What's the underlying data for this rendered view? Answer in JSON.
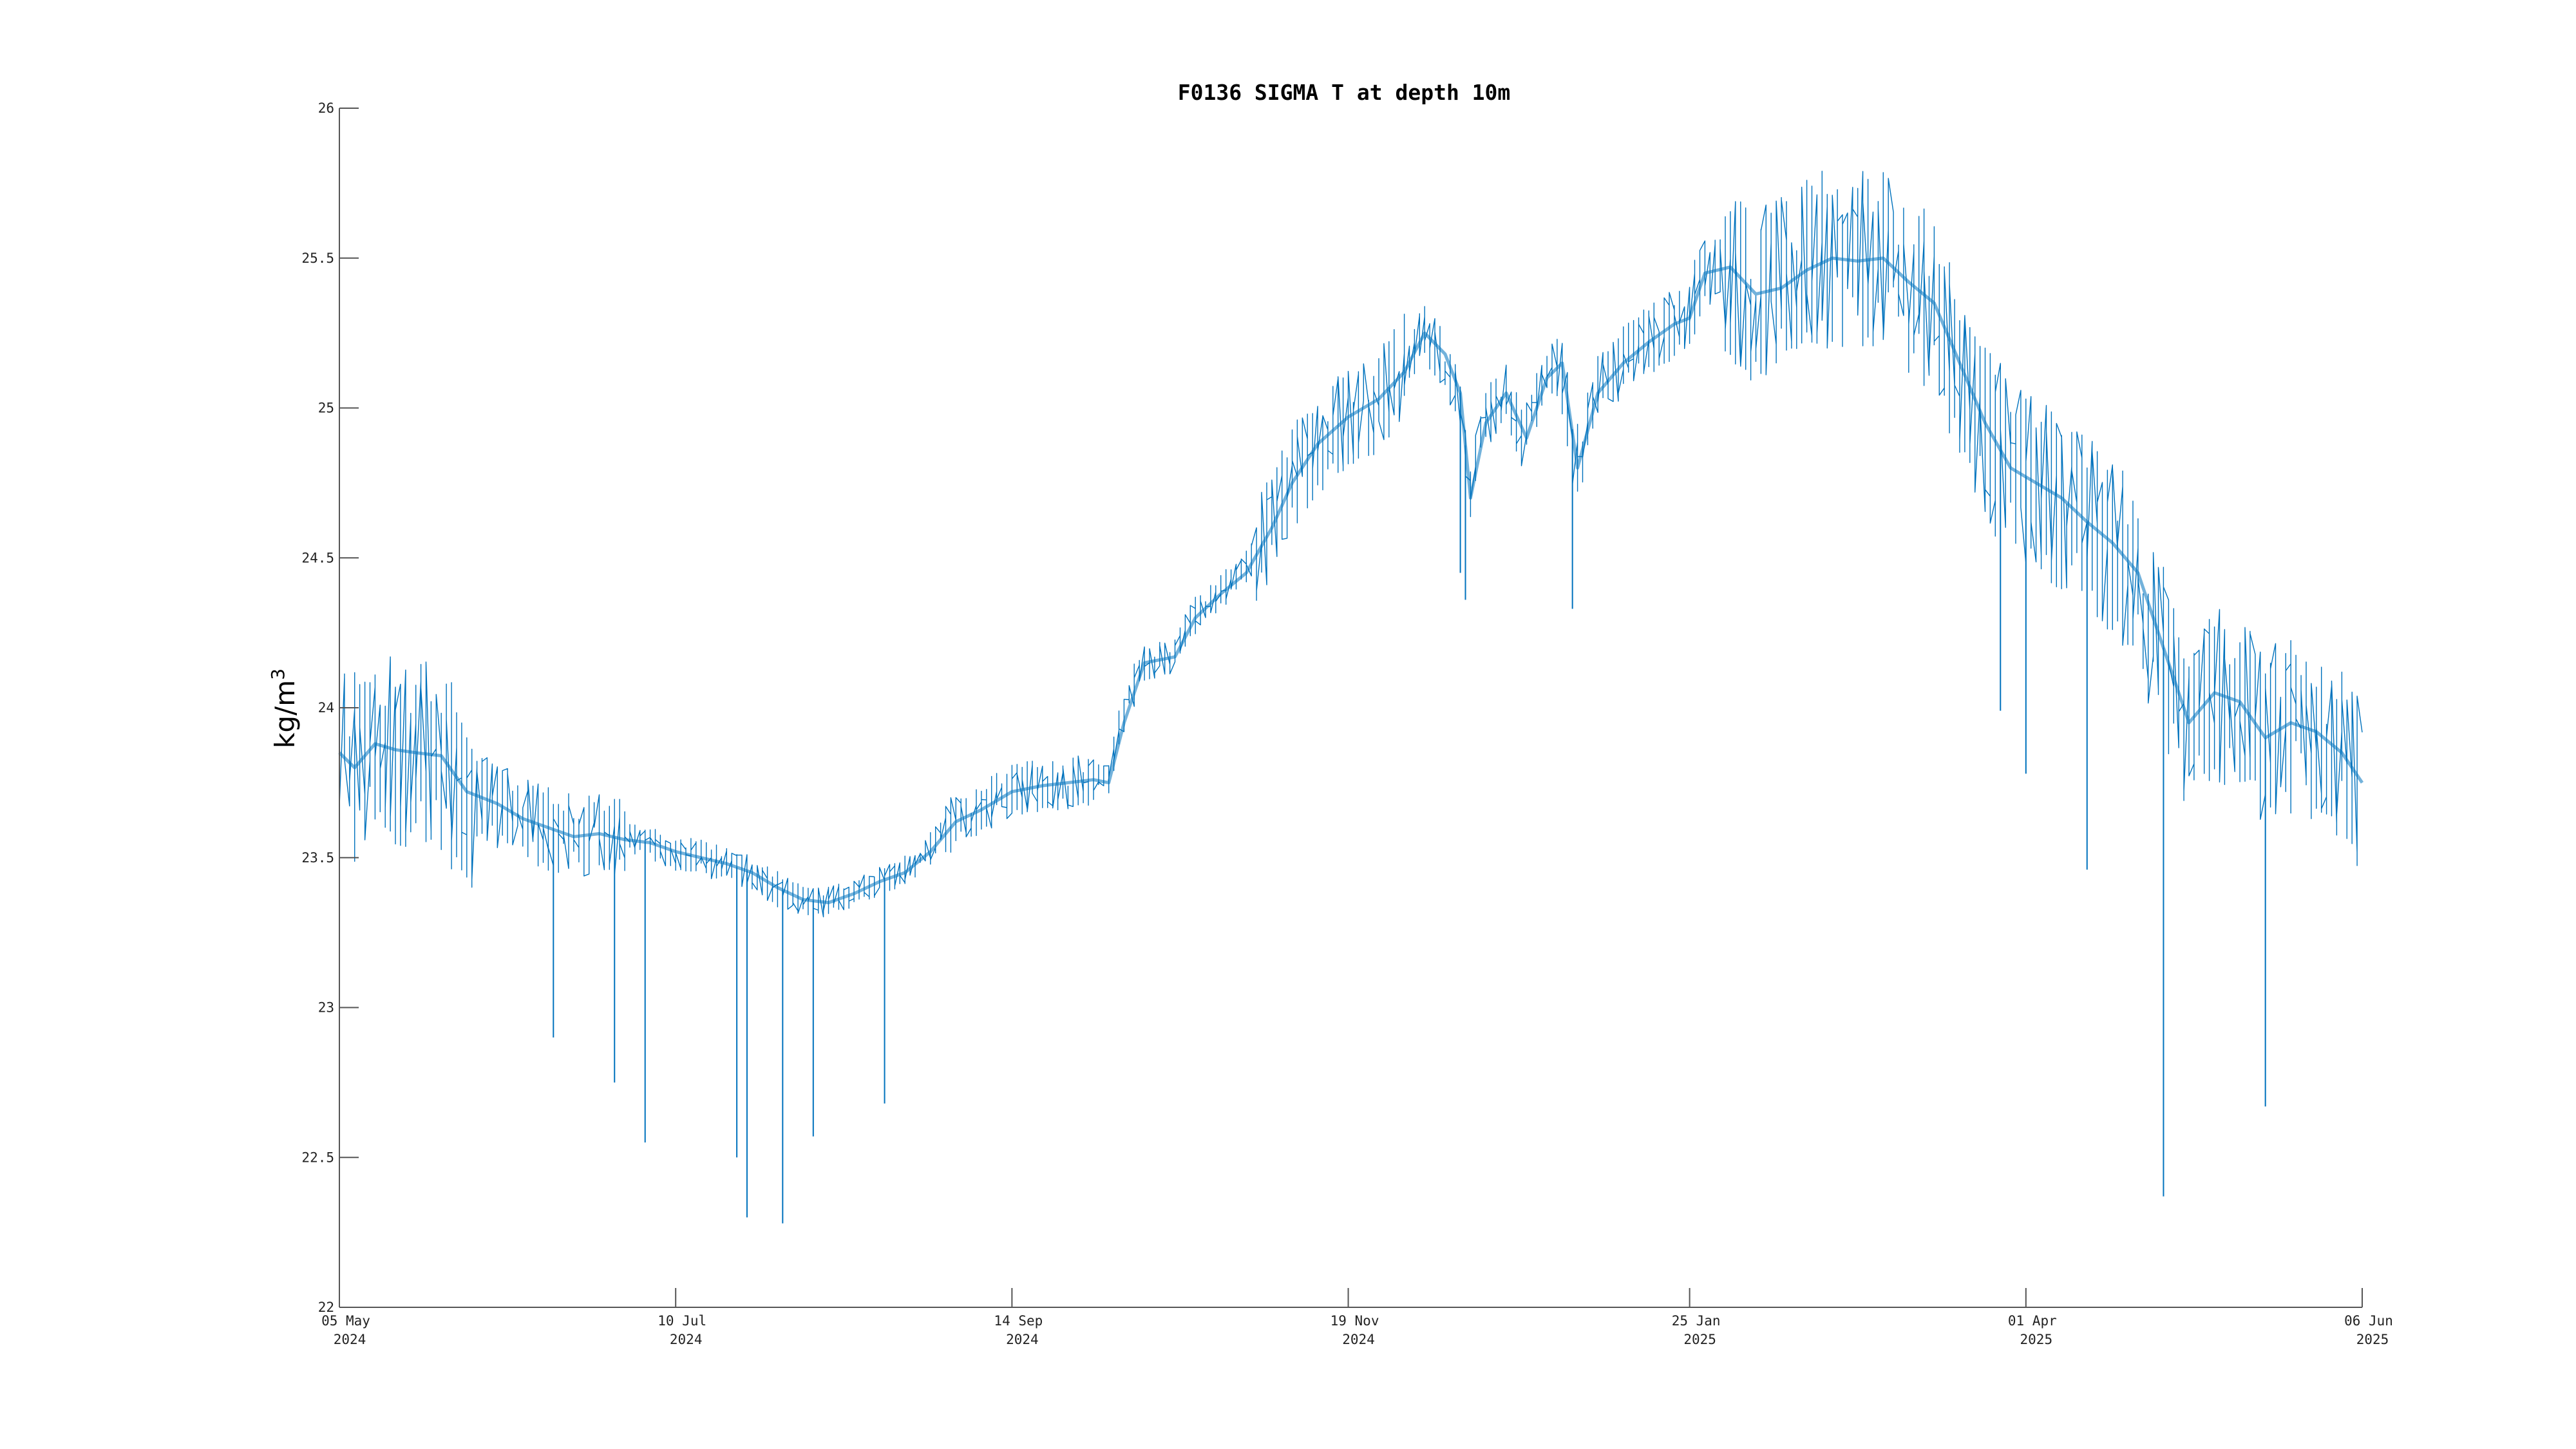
{
  "chart_data": {
    "type": "line",
    "title": "F0136 SIGMA T at depth 10m",
    "ylabel": "kg/m",
    "ylabel_superscript": "3",
    "xlabel": "",
    "ylim": [
      22,
      26
    ],
    "xlim": [
      "2024-05-05",
      "2025-06-06"
    ],
    "grid": false,
    "y_ticks": [
      "22",
      "22.5",
      "23",
      "23.5",
      "24",
      "24.5",
      "25",
      "25.5",
      "26"
    ],
    "x_ticks": [
      {
        "date": "2024-05-05",
        "line1": "05 May",
        "line2": "2024"
      },
      {
        "date": "2024-07-10",
        "line1": "10 Jul",
        "line2": "2024"
      },
      {
        "date": "2024-09-14",
        "line1": "14 Sep",
        "line2": "2024"
      },
      {
        "date": "2024-11-19",
        "line1": "19 Nov",
        "line2": "2024"
      },
      {
        "date": "2025-01-25",
        "line1": "25 Jan",
        "line2": "2025"
      },
      {
        "date": "2025-04-01",
        "line1": "01 Apr",
        "line2": "2025"
      },
      {
        "date": "2025-06-06",
        "line1": "06 Jun",
        "line2": "2025"
      }
    ],
    "series": [
      {
        "color": "#0072bd",
        "points": [
          [
            "2024-05-05",
            23.85
          ],
          [
            "2024-05-08",
            23.8
          ],
          [
            "2024-05-12",
            23.88
          ],
          [
            "2024-05-16",
            23.86
          ],
          [
            "2024-05-20",
            23.85
          ],
          [
            "2024-05-25",
            23.84
          ],
          [
            "2024-05-30",
            23.72
          ],
          [
            "2024-06-05",
            23.68
          ],
          [
            "2024-06-10",
            23.63
          ],
          [
            "2024-06-15",
            23.6
          ],
          [
            "2024-06-20",
            23.57
          ],
          [
            "2024-06-25",
            23.58
          ],
          [
            "2024-06-30",
            23.56
          ],
          [
            "2024-07-05",
            23.55
          ],
          [
            "2024-07-10",
            23.52
          ],
          [
            "2024-07-15",
            23.5
          ],
          [
            "2024-07-20",
            23.48
          ],
          [
            "2024-07-25",
            23.45
          ],
          [
            "2024-07-30",
            23.4
          ],
          [
            "2024-08-04",
            23.36
          ],
          [
            "2024-08-09",
            23.35
          ],
          [
            "2024-08-14",
            23.38
          ],
          [
            "2024-08-19",
            23.42
          ],
          [
            "2024-08-24",
            23.45
          ],
          [
            "2024-08-29",
            23.52
          ],
          [
            "2024-09-03",
            23.62
          ],
          [
            "2024-09-08",
            23.66
          ],
          [
            "2024-09-14",
            23.72
          ],
          [
            "2024-09-20",
            23.74
          ],
          [
            "2024-09-25",
            23.75
          ],
          [
            "2024-09-30",
            23.76
          ],
          [
            "2024-10-03",
            23.75
          ],
          [
            "2024-10-06",
            23.95
          ],
          [
            "2024-10-10",
            24.15
          ],
          [
            "2024-10-16",
            24.17
          ],
          [
            "2024-10-20",
            24.3
          ],
          [
            "2024-10-25",
            24.38
          ],
          [
            "2024-10-30",
            24.45
          ],
          [
            "2024-11-04",
            24.6
          ],
          [
            "2024-11-08",
            24.75
          ],
          [
            "2024-11-13",
            24.88
          ],
          [
            "2024-11-19",
            24.97
          ],
          [
            "2024-11-25",
            25.03
          ],
          [
            "2024-11-30",
            25.12
          ],
          [
            "2024-12-04",
            25.25
          ],
          [
            "2024-12-08",
            25.18
          ],
          [
            "2024-12-11",
            25.05
          ],
          [
            "2024-12-13",
            24.7
          ],
          [
            "2024-12-16",
            24.95
          ],
          [
            "2024-12-20",
            25.05
          ],
          [
            "2024-12-24",
            24.9
          ],
          [
            "2024-12-28",
            25.1
          ],
          [
            "2024-12-31",
            25.15
          ],
          [
            "2025-01-03",
            24.8
          ],
          [
            "2025-01-07",
            25.05
          ],
          [
            "2025-01-12",
            25.15
          ],
          [
            "2025-01-17",
            25.22
          ],
          [
            "2025-01-22",
            25.28
          ],
          [
            "2025-01-25",
            25.3
          ],
          [
            "2025-01-28",
            25.45
          ],
          [
            "2025-02-02",
            25.47
          ],
          [
            "2025-02-07",
            25.38
          ],
          [
            "2025-02-12",
            25.4
          ],
          [
            "2025-02-17",
            25.46
          ],
          [
            "2025-02-22",
            25.5
          ],
          [
            "2025-02-27",
            25.49
          ],
          [
            "2025-03-04",
            25.5
          ],
          [
            "2025-03-09",
            25.42
          ],
          [
            "2025-03-14",
            25.35
          ],
          [
            "2025-03-19",
            25.15
          ],
          [
            "2025-03-24",
            24.95
          ],
          [
            "2025-03-29",
            24.8
          ],
          [
            "2025-04-03",
            24.75
          ],
          [
            "2025-04-08",
            24.7
          ],
          [
            "2025-04-13",
            24.62
          ],
          [
            "2025-04-18",
            24.55
          ],
          [
            "2025-04-23",
            24.45
          ],
          [
            "2025-04-28",
            24.2
          ],
          [
            "2025-05-03",
            23.95
          ],
          [
            "2025-05-08",
            24.05
          ],
          [
            "2025-05-13",
            24.02
          ],
          [
            "2025-05-18",
            23.9
          ],
          [
            "2025-05-23",
            23.95
          ],
          [
            "2025-05-28",
            23.92
          ],
          [
            "2025-06-02",
            23.85
          ],
          [
            "2025-06-06",
            23.75
          ]
        ]
      }
    ],
    "minima": [
      [
        "2024-06-16",
        22.9
      ],
      [
        "2024-06-28",
        22.75
      ],
      [
        "2024-07-04",
        22.55
      ],
      [
        "2024-07-22",
        22.5
      ],
      [
        "2024-07-24",
        22.3
      ],
      [
        "2024-07-31",
        22.28
      ],
      [
        "2024-08-06",
        22.57
      ],
      [
        "2024-08-20",
        22.68
      ],
      [
        "2024-12-11",
        24.45
      ],
      [
        "2024-12-12",
        24.36
      ],
      [
        "2025-01-02",
        24.33
      ],
      [
        "2025-03-27",
        23.99
      ],
      [
        "2025-04-01",
        23.78
      ],
      [
        "2025-04-13",
        23.46
      ],
      [
        "2025-04-28",
        22.37
      ],
      [
        "2025-05-18",
        22.67
      ]
    ]
  }
}
